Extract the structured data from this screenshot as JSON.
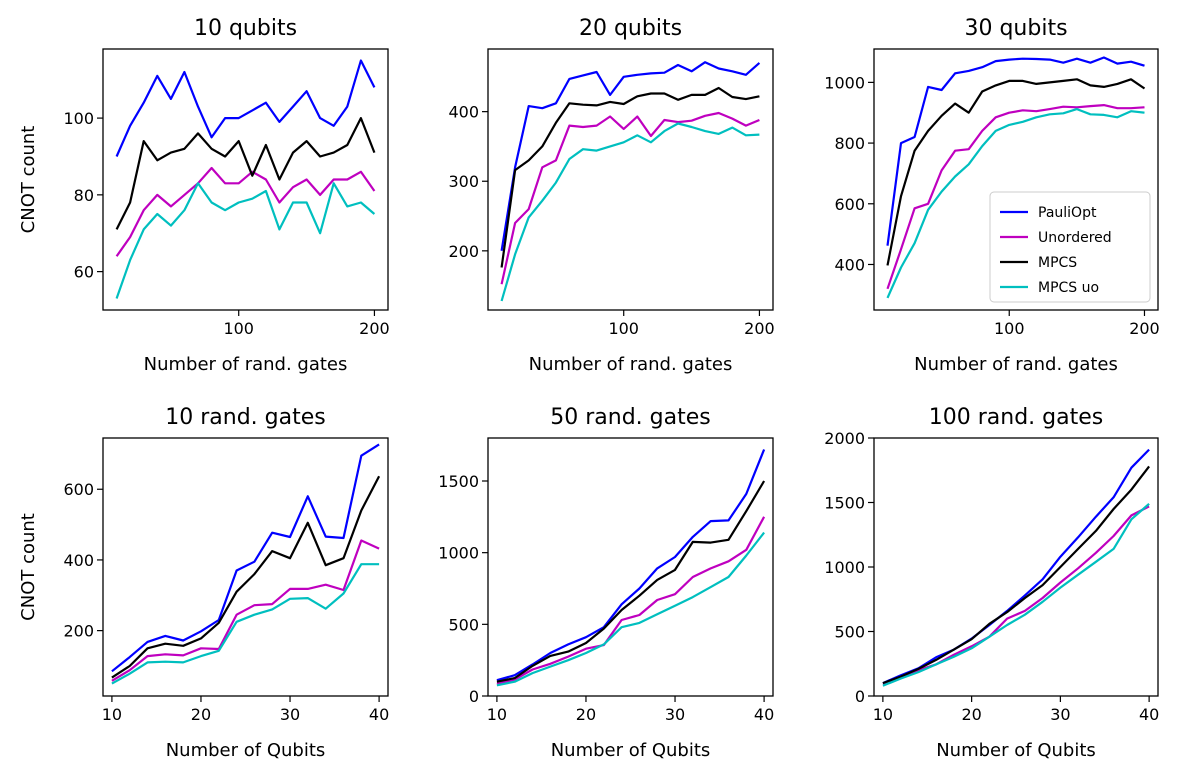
{
  "series_colors": {
    "PauliOpt": "#0000ff",
    "Unordered": "#bf00bf",
    "MPCS": "#000000",
    "MPCS uo": "#00bfbf"
  },
  "legend": {
    "entries": [
      "PauliOpt",
      "Unordered",
      "MPCS",
      "MPCS uo"
    ],
    "location": "lower-right",
    "panel": 2
  },
  "chart_data": [
    {
      "type": "line",
      "title": "10 qubits",
      "xlabel": "Number of rand. gates",
      "ylabel": "CNOT count",
      "xlim": [
        0,
        210
      ],
      "ylim": [
        50,
        118
      ],
      "xticks": [
        100,
        200
      ],
      "yticks": [
        60,
        80,
        100
      ],
      "x": [
        10,
        20,
        30,
        40,
        50,
        60,
        70,
        80,
        90,
        100,
        110,
        120,
        130,
        140,
        150,
        160,
        170,
        180,
        190,
        200
      ],
      "series": [
        {
          "name": "PauliOpt",
          "values": [
            90,
            98,
            104,
            111,
            105,
            112,
            103,
            95,
            100,
            100,
            102,
            104,
            99,
            103,
            107,
            100,
            98,
            103,
            115,
            108
          ]
        },
        {
          "name": "Unordered",
          "values": [
            64,
            69,
            76,
            80,
            77,
            80,
            83,
            87,
            83,
            83,
            86,
            84,
            78,
            82,
            84,
            80,
            84,
            84,
            86,
            81
          ]
        },
        {
          "name": "MPCS",
          "values": [
            71,
            78,
            94,
            89,
            91,
            92,
            96,
            92,
            90,
            94,
            85,
            93,
            84,
            91,
            94,
            90,
            91,
            93,
            100,
            91
          ]
        },
        {
          "name": "MPCS uo",
          "values": [
            53,
            63,
            71,
            75,
            72,
            76,
            83,
            78,
            76,
            78,
            79,
            81,
            71,
            78,
            78,
            70,
            83,
            77,
            78,
            75
          ]
        }
      ]
    },
    {
      "type": "line",
      "title": "20 qubits",
      "xlabel": "Number of rand. gates",
      "ylabel": "",
      "xlim": [
        0,
        210
      ],
      "ylim": [
        115,
        490
      ],
      "xticks": [
        100,
        200
      ],
      "yticks": [
        200,
        300,
        400
      ],
      "x": [
        10,
        20,
        30,
        40,
        50,
        60,
        70,
        80,
        90,
        100,
        110,
        120,
        130,
        140,
        150,
        160,
        170,
        180,
        190,
        200
      ],
      "series": [
        {
          "name": "PauliOpt",
          "values": [
            200,
            320,
            408,
            405,
            412,
            447,
            452,
            457,
            424,
            450,
            453,
            455,
            456,
            467,
            458,
            471,
            462,
            458,
            453,
            470
          ]
        },
        {
          "name": "Unordered",
          "values": [
            152,
            240,
            260,
            320,
            330,
            380,
            378,
            380,
            393,
            375,
            393,
            365,
            388,
            385,
            387,
            394,
            398,
            390,
            380,
            388
          ]
        },
        {
          "name": "MPCS",
          "values": [
            176,
            316,
            330,
            350,
            384,
            412,
            410,
            409,
            414,
            411,
            422,
            426,
            426,
            417,
            424,
            424,
            434,
            421,
            418,
            422
          ]
        },
        {
          "name": "MPCS uo",
          "values": [
            128,
            195,
            248,
            272,
            298,
            332,
            346,
            344,
            350,
            356,
            366,
            356,
            372,
            383,
            378,
            372,
            368,
            377,
            366,
            367
          ]
        }
      ]
    },
    {
      "type": "line",
      "title": "30 qubits",
      "xlabel": "Number of rand. gates",
      "ylabel": "",
      "xlim": [
        0,
        210
      ],
      "ylim": [
        250,
        1110
      ],
      "xticks": [
        100,
        200
      ],
      "yticks": [
        400,
        600,
        800,
        1000
      ],
      "x": [
        10,
        20,
        30,
        40,
        50,
        60,
        70,
        80,
        90,
        100,
        110,
        120,
        130,
        140,
        150,
        160,
        170,
        180,
        190,
        200
      ],
      "series": [
        {
          "name": "PauliOpt",
          "values": [
            462,
            800,
            820,
            985,
            975,
            1030,
            1038,
            1050,
            1070,
            1075,
            1078,
            1077,
            1075,
            1065,
            1078,
            1065,
            1082,
            1062,
            1068,
            1055
          ]
        },
        {
          "name": "Unordered",
          "values": [
            320,
            450,
            585,
            600,
            710,
            775,
            780,
            840,
            885,
            900,
            908,
            905,
            912,
            920,
            918,
            922,
            925,
            915,
            915,
            918
          ]
        },
        {
          "name": "MPCS",
          "values": [
            397,
            625,
            775,
            840,
            890,
            930,
            900,
            970,
            990,
            1005,
            1005,
            995,
            1000,
            1005,
            1010,
            990,
            985,
            995,
            1010,
            980
          ]
        },
        {
          "name": "MPCS uo",
          "values": [
            290,
            390,
            470,
            580,
            640,
            690,
            730,
            790,
            840,
            860,
            870,
            885,
            895,
            898,
            912,
            895,
            893,
            885,
            905,
            900
          ]
        }
      ]
    },
    {
      "type": "line",
      "title": "10 rand. gates",
      "xlabel": "Number of Qubits",
      "ylabel": "CNOT count",
      "xlim": [
        9,
        41
      ],
      "ylim": [
        15,
        745
      ],
      "xticks": [
        10,
        20,
        30,
        40
      ],
      "yticks": [
        200,
        400,
        600
      ],
      "x": [
        10,
        12,
        14,
        16,
        18,
        20,
        22,
        24,
        26,
        28,
        30,
        32,
        34,
        36,
        38,
        40
      ],
      "series": [
        {
          "name": "PauliOpt",
          "values": [
            85,
            125,
            168,
            185,
            172,
            198,
            230,
            370,
            395,
            477,
            465,
            580,
            466,
            462,
            695,
            727
          ]
        },
        {
          "name": "Unordered",
          "values": [
            58,
            88,
            128,
            133,
            130,
            150,
            148,
            245,
            272,
            275,
            318,
            318,
            330,
            315,
            455,
            432
          ]
        },
        {
          "name": "MPCS",
          "values": [
            67,
            100,
            150,
            163,
            157,
            178,
            222,
            310,
            360,
            425,
            405,
            505,
            385,
            405,
            540,
            637
          ]
        },
        {
          "name": "MPCS uo",
          "values": [
            50,
            78,
            110,
            112,
            110,
            128,
            143,
            225,
            245,
            260,
            290,
            292,
            262,
            305,
            388,
            388
          ]
        }
      ]
    },
    {
      "type": "line",
      "title": "50 rand. gates",
      "xlabel": "Number of Qubits",
      "ylabel": "",
      "xlim": [
        9,
        41
      ],
      "ylim": [
        0,
        1800
      ],
      "xticks": [
        10,
        20,
        30,
        40
      ],
      "yticks": [
        0,
        500,
        1000,
        1500
      ],
      "x": [
        10,
        12,
        14,
        16,
        18,
        20,
        22,
        24,
        26,
        28,
        30,
        32,
        34,
        36,
        38,
        40
      ],
      "series": [
        {
          "name": "PauliOpt",
          "values": [
            110,
            145,
            220,
            300,
            360,
            410,
            480,
            640,
            750,
            890,
            970,
            1110,
            1220,
            1225,
            1410,
            1720
          ]
        },
        {
          "name": "Unordered",
          "values": [
            85,
            115,
            185,
            225,
            275,
            330,
            355,
            530,
            565,
            670,
            710,
            830,
            890,
            940,
            1020,
            1250
          ]
        },
        {
          "name": "MPCS",
          "values": [
            100,
            125,
            210,
            280,
            310,
            370,
            470,
            600,
            700,
            810,
            880,
            1075,
            1070,
            1090,
            1290,
            1500
          ]
        },
        {
          "name": "MPCS uo",
          "values": [
            75,
            100,
            160,
            205,
            250,
            300,
            360,
            480,
            510,
            570,
            630,
            690,
            760,
            830,
            980,
            1140
          ]
        }
      ]
    },
    {
      "type": "line",
      "title": "100 rand. gates",
      "xlabel": "Number of Qubits",
      "ylabel": "",
      "xlim": [
        9,
        41
      ],
      "ylim": [
        0,
        2000
      ],
      "xticks": [
        10,
        20,
        30,
        40
      ],
      "yticks": [
        0,
        500,
        1000,
        1500,
        2000
      ],
      "x": [
        10,
        12,
        14,
        16,
        18,
        20,
        22,
        24,
        26,
        28,
        30,
        32,
        34,
        36,
        38,
        40
      ],
      "series": [
        {
          "name": "PauliOpt",
          "values": [
            100,
            160,
            215,
            300,
            360,
            445,
            550,
            660,
            780,
            905,
            1080,
            1230,
            1390,
            1540,
            1770,
            1910
          ]
        },
        {
          "name": "Unordered",
          "values": [
            95,
            140,
            200,
            245,
            320,
            385,
            460,
            600,
            660,
            760,
            880,
            990,
            1110,
            1240,
            1400,
            1470
          ]
        },
        {
          "name": "MPCS",
          "values": [
            100,
            150,
            210,
            280,
            360,
            440,
            560,
            650,
            760,
            860,
            1000,
            1140,
            1280,
            1450,
            1600,
            1780
          ]
        },
        {
          "name": "MPCS uo",
          "values": [
            80,
            135,
            185,
            245,
            305,
            370,
            460,
            550,
            630,
            730,
            840,
            940,
            1040,
            1140,
            1370,
            1490
          ]
        }
      ]
    }
  ]
}
